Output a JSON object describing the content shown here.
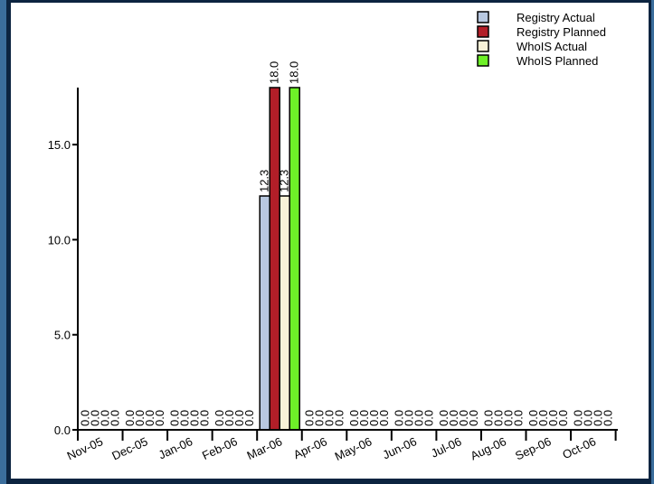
{
  "chart_data": {
    "type": "bar",
    "title": "",
    "xlabel": "",
    "ylabel": "",
    "categories": [
      "Nov-05",
      "Dec-05",
      "Jan-06",
      "Feb-06",
      "Mar-06",
      "Apr-06",
      "May-06",
      "Jun-06",
      "Jul-06",
      "Aug-06",
      "Sep-06",
      "Oct-06"
    ],
    "series": [
      {
        "name": "Registry Actual",
        "color": "#b8c8e0",
        "values": [
          0.0,
          0.0,
          0.0,
          0.0,
          12.3,
          0.0,
          0.0,
          0.0,
          0.0,
          0.0,
          0.0,
          0.0
        ]
      },
      {
        "name": "Registry Planned",
        "color": "#b21e28",
        "values": [
          0.0,
          0.0,
          0.0,
          0.0,
          18.0,
          0.0,
          0.0,
          0.0,
          0.0,
          0.0,
          0.0,
          0.0
        ]
      },
      {
        "name": "WhoIS Actual",
        "color": "#f8f2d8",
        "values": [
          0.0,
          0.0,
          0.0,
          0.0,
          12.3,
          0.0,
          0.0,
          0.0,
          0.0,
          0.0,
          0.0,
          0.0
        ]
      },
      {
        "name": "WhoIS Planned",
        "color": "#6ef028",
        "values": [
          0.0,
          0.0,
          0.0,
          0.0,
          18.0,
          0.0,
          0.0,
          0.0,
          0.0,
          0.0,
          0.0,
          0.0
        ]
      }
    ],
    "ylim": [
      0,
      18
    ],
    "yticks": [
      0.0,
      5.0,
      10.0,
      15.0
    ],
    "ytick_labels": [
      "0.0",
      "5.0",
      "10.0",
      "15.0"
    ],
    "data_label_format": "0.0",
    "legend_position": "top-right",
    "grid": false
  },
  "colors": {
    "frame": "#0c2440",
    "frame_accent": "#3b6e9c",
    "background": "#ffffff"
  }
}
